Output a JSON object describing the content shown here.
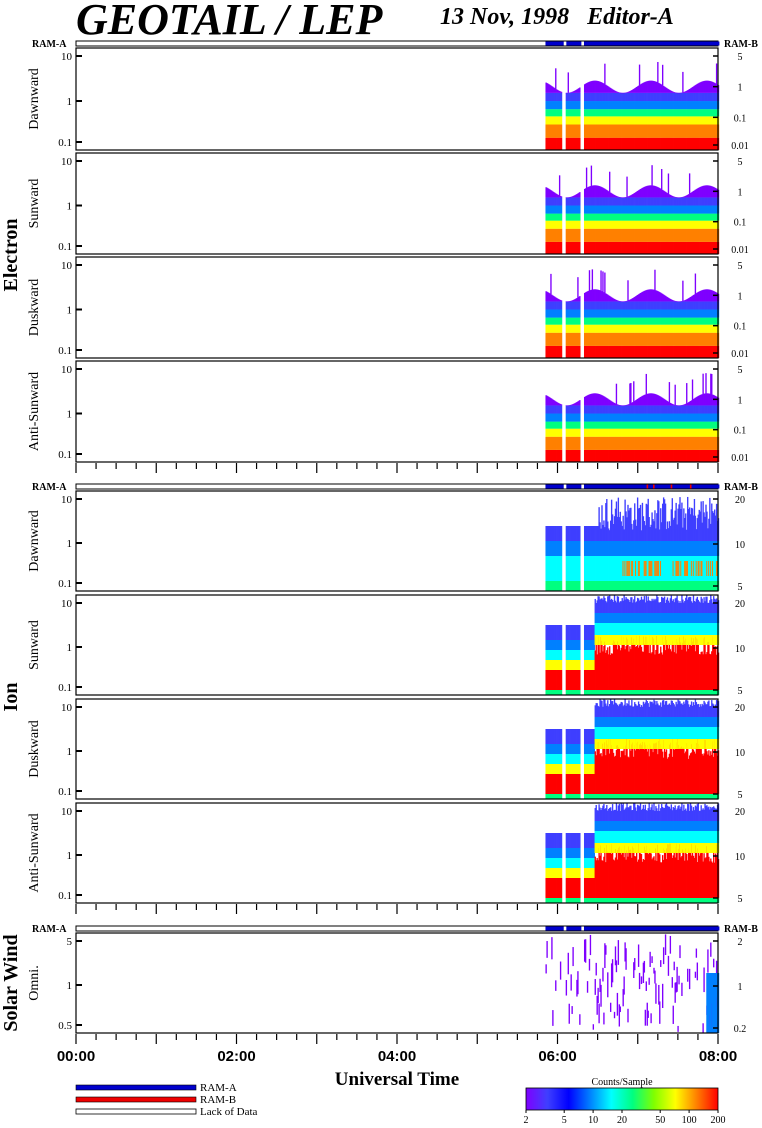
{
  "header": {
    "title": "GEOTAIL / LEP",
    "date_editor": "13 Nov, 1998   Editor-A"
  },
  "colors": {
    "ram_a": "#0000cc",
    "ram_b": "#ee0000",
    "spectrum": [
      "#7f00ff",
      "#3f3fff",
      "#0000ff",
      "#0080ff",
      "#00ffff",
      "#00ff80",
      "#80ff00",
      "#ffff00",
      "#ff8000",
      "#ff0000"
    ]
  },
  "legend": {
    "ram_a": "RAM-A",
    "ram_b": "RAM-B",
    "lack": "Lack of Data",
    "colorbar_title": "Counts/Sample",
    "colorbar_ticks": [
      "2",
      "5",
      "10",
      "20",
      "50",
      "100",
      "200"
    ]
  },
  "labels": {
    "ram_a": "RAM-A",
    "ram_b": "RAM-B",
    "electron": "Electron",
    "ion": "Ion",
    "solar_wind": "Solar Wind"
  },
  "chart_data": {
    "type": "heatmap",
    "xlabel": "Universal Time",
    "x_ticks": [
      "00:00",
      "02:00",
      "04:00",
      "06:00",
      "08:00"
    ],
    "x_range_hours": [
      0,
      8
    ],
    "data_start_hour": 5.85,
    "data_gaps_hours": [
      [
        6.05,
        6.1
      ],
      [
        6.27,
        6.32
      ]
    ],
    "panels": [
      {
        "group": "electron",
        "label": "Dawnward",
        "yticks": [
          "10",
          "1",
          "0.1"
        ],
        "rticks": [
          "5",
          "1",
          "0.1",
          "0.01"
        ],
        "mode": "electron"
      },
      {
        "group": "electron",
        "label": "Sunward",
        "yticks": [
          "10",
          "1",
          "0.1"
        ],
        "rticks": [
          "5",
          "1",
          "0.1",
          "0.01"
        ],
        "mode": "electron"
      },
      {
        "group": "electron",
        "label": "Duskward",
        "yticks": [
          "10",
          "1",
          "0.1"
        ],
        "rticks": [
          "5",
          "1",
          "0.1",
          "0.01"
        ],
        "mode": "electron"
      },
      {
        "group": "electron",
        "label": "Anti-Sunward",
        "yticks": [
          "10",
          "1",
          "0.1"
        ],
        "rticks": [
          "5",
          "1",
          "0.1",
          "0.01"
        ],
        "mode": "electron"
      },
      {
        "group": "ion",
        "label": "Dawnward",
        "yticks": [
          "10",
          "1",
          "0.1"
        ],
        "rticks": [
          "20",
          "10",
          "5"
        ],
        "mode": "ion-low"
      },
      {
        "group": "ion",
        "label": "Sunward",
        "yticks": [
          "10",
          "1",
          "0.1"
        ],
        "rticks": [
          "20",
          "10",
          "5"
        ],
        "mode": "ion"
      },
      {
        "group": "ion",
        "label": "Duskward",
        "yticks": [
          "10",
          "1",
          "0.1"
        ],
        "rticks": [
          "20",
          "10",
          "5"
        ],
        "mode": "ion"
      },
      {
        "group": "ion",
        "label": "Anti-Sunward",
        "yticks": [
          "10",
          "1",
          "0.1"
        ],
        "rticks": [
          "20",
          "10",
          "5"
        ],
        "mode": "ion"
      },
      {
        "group": "solar_wind",
        "label": "Omni.",
        "yticks": [
          "5",
          "1",
          "0.5"
        ],
        "rticks": [
          "2",
          "1",
          "0.2"
        ],
        "mode": "sw"
      }
    ]
  }
}
